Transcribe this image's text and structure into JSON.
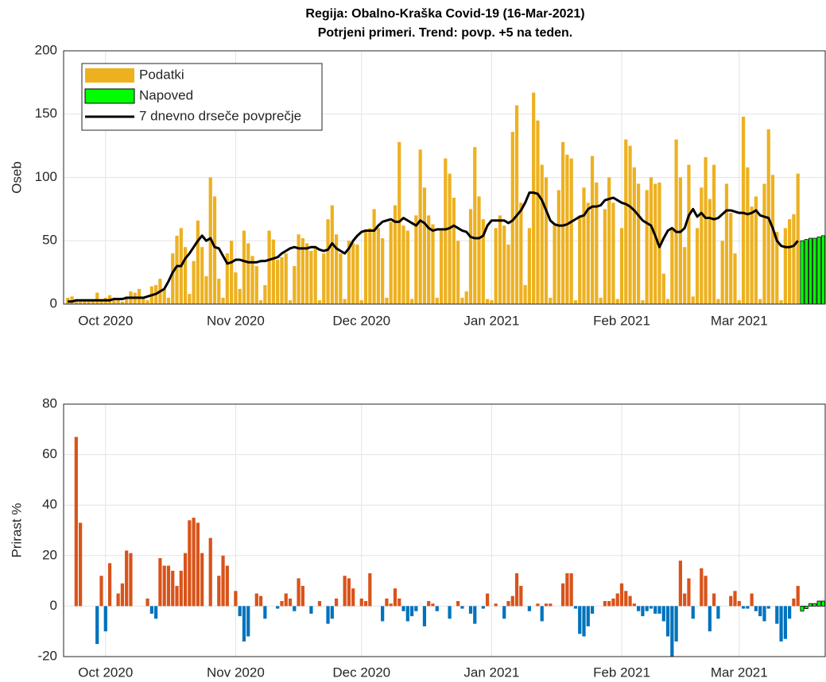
{
  "chart_data": [
    {
      "type": "bar",
      "title": "Regija: Obalno-Kraška Covid-19 (16-Mar-2021)",
      "subtitle": "Potrjeni primeri. Trend: povp. +5 na teden.",
      "y_label": "Oseb",
      "xlim": [
        -1,
        180.5
      ],
      "xticks": [
        {
          "value": 9,
          "label": "Oct 2020"
        },
        {
          "value": 40,
          "label": "Nov 2020"
        },
        {
          "value": 70,
          "label": "Dec 2020"
        },
        {
          "value": 101,
          "label": "Jan 2021"
        },
        {
          "value": 132,
          "label": "Feb 2021"
        },
        {
          "value": 160,
          "label": "Mar 2021"
        }
      ],
      "ylim": [
        0,
        200
      ],
      "yticks": [
        0,
        50,
        100,
        150,
        200
      ],
      "grid": true,
      "legend": "upper left",
      "x": [
        0,
        1,
        2,
        3,
        4,
        5,
        6,
        7,
        8,
        9,
        10,
        11,
        12,
        13,
        14,
        15,
        16,
        17,
        18,
        19,
        20,
        21,
        22,
        23,
        24,
        25,
        26,
        27,
        28,
        29,
        30,
        31,
        32,
        33,
        34,
        35,
        36,
        37,
        38,
        39,
        40,
        41,
        42,
        43,
        44,
        45,
        46,
        47,
        48,
        49,
        50,
        51,
        52,
        53,
        54,
        55,
        56,
        57,
        58,
        59,
        60,
        61,
        62,
        63,
        64,
        65,
        66,
        67,
        68,
        69,
        70,
        71,
        72,
        73,
        74,
        75,
        76,
        77,
        78,
        79,
        80,
        81,
        82,
        83,
        84,
        85,
        86,
        87,
        88,
        89,
        90,
        91,
        92,
        93,
        94,
        95,
        96,
        97,
        98,
        99,
        100,
        101,
        102,
        103,
        104,
        105,
        106,
        107,
        108,
        109,
        110,
        111,
        112,
        113,
        114,
        115,
        116,
        117,
        118,
        119,
        120,
        121,
        122,
        123,
        124,
        125,
        126,
        127,
        128,
        129,
        130,
        131,
        132,
        133,
        134,
        135,
        136,
        137,
        138,
        139,
        140,
        141,
        142,
        143,
        144,
        145,
        146,
        147,
        148,
        149,
        150,
        151,
        152,
        153,
        154,
        155,
        156,
        157,
        158,
        159,
        160,
        161,
        162,
        163,
        164,
        165,
        166,
        167,
        168,
        169,
        170,
        171,
        172,
        173,
        174
      ],
      "series": [
        {
          "name": "Podatki",
          "type": "bar",
          "color": "#EDB120",
          "values": [
            5,
            6,
            2,
            2,
            3,
            2,
            3,
            9,
            3,
            5,
            7,
            3,
            4,
            2,
            6,
            10,
            9,
            12,
            5,
            3,
            14,
            15,
            20,
            12,
            5,
            40,
            54,
            60,
            45,
            8,
            34,
            66,
            45,
            22,
            100,
            85,
            20,
            5,
            40,
            50,
            25,
            12,
            58,
            48,
            38,
            30,
            3,
            15,
            58,
            51,
            35,
            37,
            40,
            3,
            30,
            55,
            52,
            48,
            42,
            45,
            3,
            40,
            67,
            78,
            55,
            40,
            4,
            50,
            48,
            47,
            3,
            57,
            60,
            75,
            60,
            52,
            5,
            65,
            78,
            128,
            62,
            58,
            4,
            70,
            122,
            92,
            70,
            63,
            5,
            58,
            115,
            103,
            84,
            50,
            5,
            10,
            75,
            124,
            85,
            67,
            4,
            3,
            60,
            70,
            62,
            47,
            136,
            157,
            80,
            15,
            60,
            167,
            145,
            110,
            100,
            5,
            62,
            90,
            128,
            118,
            115,
            3,
            70,
            92,
            80,
            117,
            96,
            5,
            75,
            100,
            80,
            4,
            60,
            130,
            125,
            108,
            95,
            3,
            90,
            100,
            95,
            96,
            24,
            4,
            60,
            130,
            100,
            45,
            110,
            6,
            60,
            92,
            116,
            83,
            110,
            4,
            50,
            95,
            72,
            40,
            3,
            148,
            108,
            77,
            85,
            4,
            95,
            138,
            102,
            57,
            3,
            60,
            67,
            71,
            103
          ]
        },
        {
          "name": "Napoved",
          "type": "bar",
          "color": "#00FF00",
          "x": [
            175,
            176,
            177,
            178,
            179,
            180
          ],
          "values": [
            50,
            51,
            52,
            52,
            53,
            54
          ]
        },
        {
          "name": "7 dnevno drseče povprečje",
          "type": "line",
          "color": "#000000",
          "values": [
            2,
            2,
            3,
            3,
            3,
            3,
            3,
            3,
            3,
            3,
            3,
            4,
            4,
            4,
            5,
            5,
            5,
            5,
            5,
            6,
            7,
            8,
            10,
            12,
            18,
            25,
            30,
            30,
            36,
            40,
            45,
            50,
            54,
            50,
            52,
            45,
            44,
            38,
            32,
            33,
            35,
            35,
            34,
            33,
            33,
            33,
            34,
            34,
            35,
            36,
            37,
            40,
            42,
            44,
            45,
            44,
            44,
            44,
            45,
            45,
            43,
            42,
            43,
            48,
            44,
            42,
            40,
            44,
            50,
            54,
            57,
            58,
            58,
            58,
            62,
            65,
            66,
            67,
            65,
            65,
            68,
            66,
            64,
            62,
            66,
            64,
            60,
            58,
            59,
            59,
            59,
            60,
            62,
            60,
            58,
            57,
            53,
            52,
            52,
            54,
            62,
            66,
            66,
            66,
            66,
            64,
            66,
            70,
            74,
            80,
            88,
            88,
            87,
            82,
            74,
            66,
            63,
            62,
            62,
            63,
            65,
            67,
            69,
            70,
            75,
            77,
            77,
            78,
            82,
            83,
            84,
            82,
            80,
            79,
            77,
            74,
            70,
            66,
            64,
            62,
            54,
            45,
            52,
            58,
            60,
            57,
            57,
            60,
            70,
            75,
            69,
            72,
            68,
            68,
            67,
            68,
            71,
            74,
            74,
            73,
            72,
            72,
            71,
            72,
            74,
            70,
            69,
            68,
            60,
            50,
            46,
            45,
            45,
            46,
            50
          ]
        }
      ]
    },
    {
      "type": "bar",
      "y_label": "Prirast %",
      "xlim": [
        -1,
        180.5
      ],
      "xticks": [
        {
          "value": 9,
          "label": "Oct 2020"
        },
        {
          "value": 40,
          "label": "Nov 2020"
        },
        {
          "value": 70,
          "label": "Dec 2020"
        },
        {
          "value": 101,
          "label": "Jan 2021"
        },
        {
          "value": 132,
          "label": "Feb 2021"
        },
        {
          "value": 160,
          "label": "Mar 2021"
        }
      ],
      "ylim": [
        -20,
        80
      ],
      "yticks": [
        -20,
        0,
        20,
        40,
        60,
        80
      ],
      "grid": true,
      "positive_color": "#D95319",
      "negative_color": "#0072BD",
      "x": [
        0,
        1,
        2,
        3,
        4,
        5,
        6,
        7,
        8,
        9,
        10,
        11,
        12,
        13,
        14,
        15,
        16,
        17,
        18,
        19,
        20,
        21,
        22,
        23,
        24,
        25,
        26,
        27,
        28,
        29,
        30,
        31,
        32,
        33,
        34,
        35,
        36,
        37,
        38,
        39,
        40,
        41,
        42,
        43,
        44,
        45,
        46,
        47,
        48,
        49,
        50,
        51,
        52,
        53,
        54,
        55,
        56,
        57,
        58,
        59,
        60,
        61,
        62,
        63,
        64,
        65,
        66,
        67,
        68,
        69,
        70,
        71,
        72,
        73,
        74,
        75,
        76,
        77,
        78,
        79,
        80,
        81,
        82,
        83,
        84,
        85,
        86,
        87,
        88,
        89,
        90,
        91,
        92,
        93,
        94,
        95,
        96,
        97,
        98,
        99,
        100,
        101,
        102,
        103,
        104,
        105,
        106,
        107,
        108,
        109,
        110,
        111,
        112,
        113,
        114,
        115,
        116,
        117,
        118,
        119,
        120,
        121,
        122,
        123,
        124,
        125,
        126,
        127,
        128,
        129,
        130,
        131,
        132,
        133,
        134,
        135,
        136,
        137,
        138,
        139,
        140,
        141,
        142,
        143,
        144,
        145,
        146,
        147,
        148,
        149,
        150,
        151,
        152,
        153,
        154,
        155,
        156,
        157,
        158,
        159,
        160,
        161,
        162,
        163,
        164,
        165,
        166,
        167,
        168,
        169,
        170,
        171,
        172,
        173,
        174
      ],
      "values": [
        0,
        0,
        67,
        33,
        0,
        0,
        0,
        -15,
        12,
        -10,
        17,
        0,
        5,
        9,
        22,
        21,
        0,
        0,
        0,
        3,
        -3,
        -5,
        19,
        16,
        16,
        14,
        8,
        14,
        21,
        34,
        35,
        33,
        21,
        0,
        27,
        0,
        12,
        20,
        16,
        0,
        6,
        -4,
        -14,
        -12,
        0,
        5,
        4,
        -5,
        0,
        0,
        -1,
        2,
        5,
        3,
        -2,
        11,
        8,
        0,
        -3,
        0,
        2,
        0,
        -7,
        -5,
        3,
        0,
        12,
        11,
        7,
        0,
        3,
        2,
        13,
        0,
        0,
        -6,
        3,
        1,
        7,
        3,
        -2,
        -6,
        -4,
        -2,
        0,
        -8,
        2,
        1,
        -2,
        0,
        0,
        -5,
        0,
        2,
        -1,
        0,
        -3,
        -7,
        0,
        -1,
        5,
        0,
        1,
        0,
        -5,
        2,
        4,
        13,
        8,
        0,
        -2,
        0,
        1,
        -6,
        1,
        1,
        0,
        0,
        9,
        13,
        13,
        -1,
        -11,
        -12,
        -8,
        -3,
        0,
        0,
        2,
        2,
        3,
        5,
        9,
        6,
        4,
        1,
        -2,
        -4,
        -2,
        -1,
        -3,
        -3,
        -6,
        -12,
        -20,
        -14,
        18,
        5,
        11,
        -5,
        0,
        15,
        12,
        -10,
        5,
        -5,
        0,
        0,
        4,
        6,
        2,
        -1,
        -1,
        5,
        -2,
        -4,
        -6,
        -1,
        0,
        -7,
        -14,
        -13,
        -5,
        3,
        8
      ],
      "forecast": {
        "color": "#00FF00",
        "x": [
          175,
          176,
          177,
          178,
          179,
          180
        ],
        "values": [
          -2,
          -1,
          1,
          1,
          2,
          2
        ]
      }
    }
  ]
}
